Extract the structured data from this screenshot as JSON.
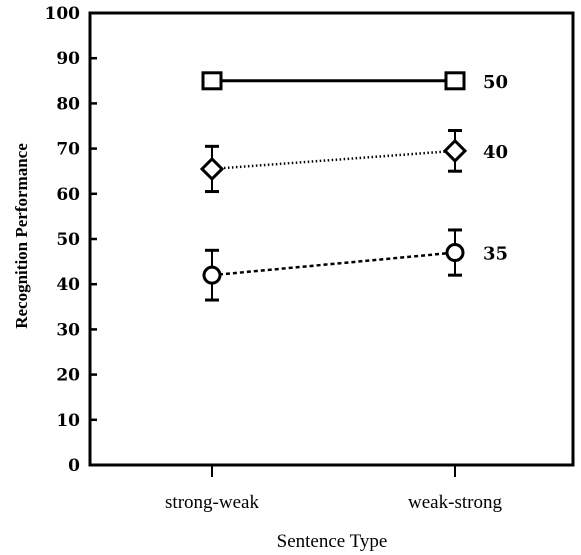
{
  "chart_data": {
    "type": "line",
    "xlabel": "Sentence Type",
    "ylabel": "Recognition Performance",
    "categories": [
      "strong-weak",
      "weak-strong"
    ],
    "ylim": [
      0,
      100
    ],
    "yticks": [
      0,
      10,
      20,
      30,
      40,
      50,
      60,
      70,
      80,
      90,
      100
    ],
    "grid": false,
    "series": [
      {
        "name": "50",
        "marker": "square",
        "line": "solid",
        "values": [
          85,
          85
        ],
        "errors": [
          0,
          0
        ]
      },
      {
        "name": "40",
        "marker": "diamond",
        "line": "dotted",
        "values": [
          65.5,
          69.5
        ],
        "errors": [
          5,
          4.5
        ]
      },
      {
        "name": "35",
        "marker": "circle",
        "line": "dashed",
        "values": [
          42,
          47
        ],
        "errors": [
          5.5,
          5
        ]
      }
    ]
  }
}
